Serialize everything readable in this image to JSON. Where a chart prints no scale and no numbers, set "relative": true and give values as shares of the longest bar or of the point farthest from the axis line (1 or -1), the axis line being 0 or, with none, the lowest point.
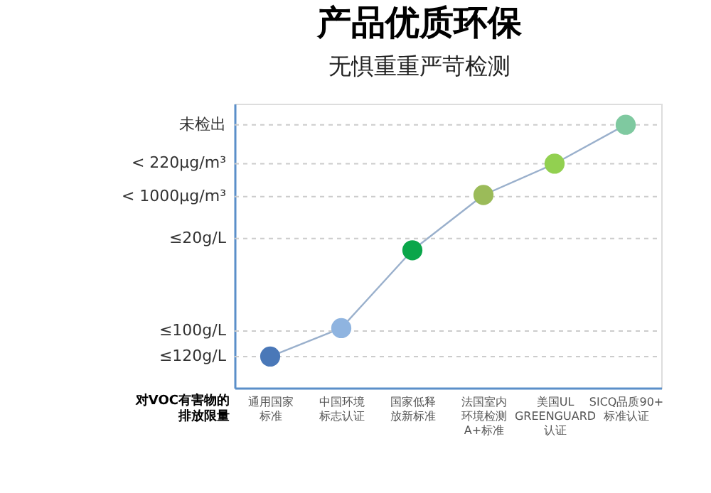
{
  "chart_data": {
    "type": "line",
    "title": "产品优质环保",
    "subtitle": "无惧重重严苛检测",
    "ylabel": "对VOC有害物的排放限量",
    "categories": [
      "通用国家标准",
      "中国环境标志认证",
      "国家低释放新标准",
      "法国室内环境检测A+标准",
      "美国UL GREENGUARD 认证",
      "SICQ品质90+标准认证"
    ],
    "series": [
      {
        "color": "#9ab0cc",
        "values": [
          0.119,
          0.227,
          0.523,
          0.733,
          0.852,
          1.0
        ],
        "colors": [
          "#4a78b8",
          "#8fb4e0",
          "#0aa64a",
          "#9bbb59",
          "#92d050",
          "#7fc9a0"
        ]
      }
    ],
    "relative": true,
    "ref_lines": [
      {
        "axis": "y",
        "value": 0.119,
        "label": "≤120g/L",
        "color": "#cccccc",
        "line_style": "dashed"
      },
      {
        "axis": "y",
        "value": 0.216,
        "label": "≤100g/L",
        "color": "#cccccc",
        "line_style": "dashed"
      },
      {
        "axis": "y",
        "value": 0.568,
        "label": "≤20g/L",
        "color": "#cccccc",
        "line_style": "dashed"
      },
      {
        "axis": "y",
        "value": 0.727,
        "label": "< 1000μg/m³",
        "color": "#cccccc",
        "line_style": "dashed"
      },
      {
        "axis": "y",
        "value": 0.852,
        "label": "< 220μg/m³",
        "color": "#cccccc",
        "line_style": "dashed"
      },
      {
        "axis": "y",
        "value": 1.0,
        "label": "未检出",
        "color": "#cccccc",
        "line_style": "dashed"
      }
    ],
    "marker": "circle",
    "line_style": "solid"
  }
}
